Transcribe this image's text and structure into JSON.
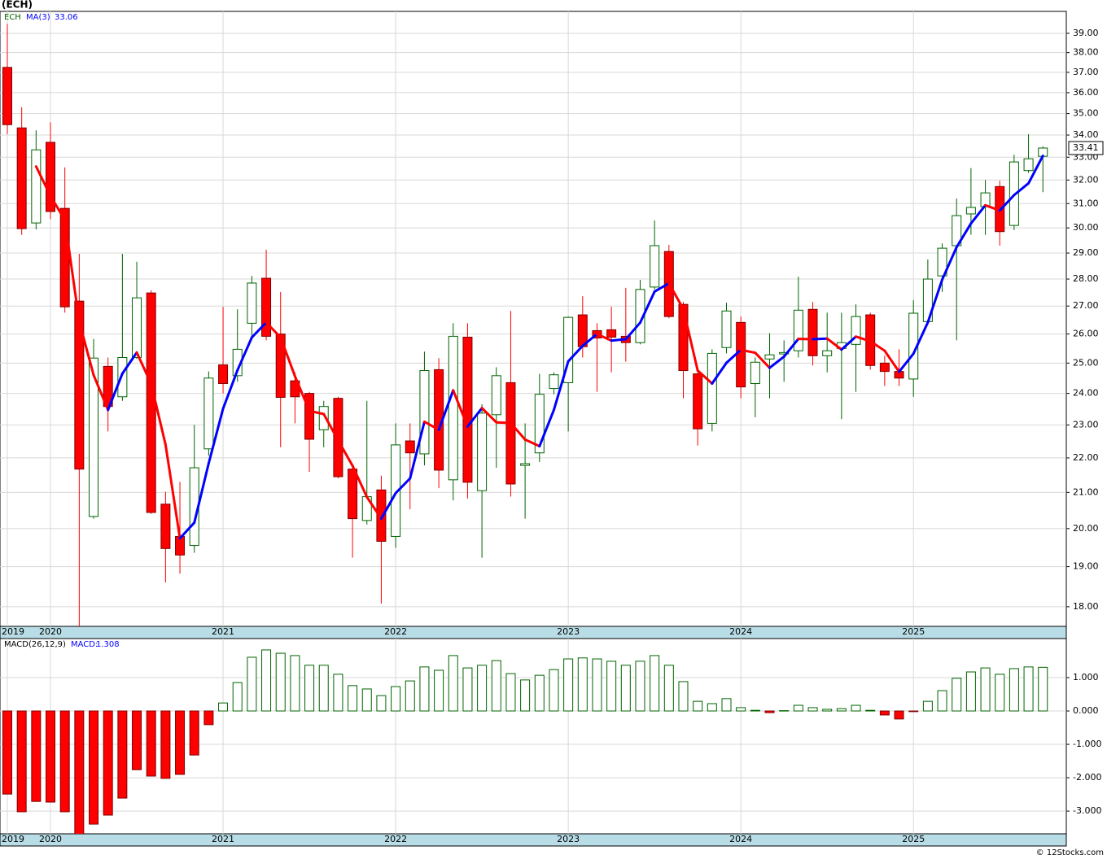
{
  "chart_data": [
    {
      "type": "candlestick",
      "title": "(ECH)",
      "symbol": "ECH",
      "categories": [
        "2019",
        null,
        null,
        "2020",
        null,
        null,
        null,
        null,
        null,
        null,
        null,
        null,
        null,
        null,
        null,
        "2021",
        null,
        null,
        null,
        null,
        null,
        null,
        null,
        null,
        null,
        null,
        null,
        "2022",
        null,
        null,
        null,
        null,
        null,
        null,
        null,
        null,
        null,
        null,
        null,
        "2023",
        null,
        null,
        null,
        null,
        null,
        null,
        null,
        null,
        null,
        null,
        null,
        "2024",
        null,
        null,
        null,
        null,
        null,
        null,
        null,
        null,
        null,
        null,
        null,
        "2025",
        null,
        null,
        null,
        null,
        null,
        null,
        null,
        null,
        null
      ],
      "open": [
        37.25,
        34.33,
        30.2,
        33.67,
        30.8,
        27.18,
        20.33,
        24.89,
        23.89,
        25.19,
        27.48,
        20.67,
        19.79,
        19.55,
        22.27,
        24.94,
        24.58,
        26.38,
        28.03,
        26,
        24.41,
        24,
        22.85,
        23.84,
        21.67,
        20.22,
        21.07,
        19.79,
        22.51,
        22.12,
        24.78,
        21.36,
        25.89,
        21.05,
        23.32,
        24.35,
        21.78,
        22.15,
        24.16,
        24.35,
        26.68,
        26.12,
        26.15,
        25.92,
        25.7,
        27.7,
        29.06,
        27.06,
        24.64,
        23.05,
        25.53,
        26.41,
        24.32,
        25.14,
        25.31,
        25.42,
        26.88,
        25.25,
        25.5,
        25.64,
        26.68,
        25.0,
        24.72,
        24.47,
        26.44,
        28.12,
        29.29,
        30.57,
        30.87,
        31.72,
        30.1,
        32.41,
        33.04
      ],
      "high": [
        39.5,
        35.3,
        34.22,
        34.59,
        32.55,
        28.97,
        25.83,
        25.19,
        28.97,
        28.66,
        27.58,
        21.02,
        21.3,
        23.0,
        24.72,
        26.97,
        26.88,
        28.12,
        29.13,
        27.52,
        24.69,
        24.05,
        23.76,
        23.89,
        21.71,
        23.76,
        21.48,
        23.05,
        23.05,
        25.39,
        25.17,
        26.38,
        26.38,
        23.65,
        24.86,
        26.82,
        23.05,
        24.64,
        24.69,
        26.62,
        27.36,
        26.38,
        26.97,
        27.67,
        27.97,
        30.3,
        29.32,
        27.15,
        24.86,
        25.47,
        27.12,
        26.62,
        25.19,
        26.03,
        25.78,
        28.09,
        27.15,
        26.76,
        26.76,
        27.06,
        26.76,
        25.25,
        25.47,
        27.21,
        28.75,
        29.38,
        31.21,
        32.52,
        32.0,
        31.97,
        33.11,
        34.04,
        33.48
      ],
      "low": [
        34.04,
        29.72,
        29.94,
        30.36,
        26.76,
        17.53,
        20.27,
        22.8,
        23.76,
        25.14,
        20.4,
        18.6,
        18.82,
        19.36,
        22.07,
        24.0,
        24.38,
        25.78,
        25.78,
        22.32,
        23.05,
        21.59,
        22.32,
        21.4,
        19.23,
        20.11,
        18.08,
        19.49,
        20.53,
        21.78,
        21.12,
        20.78,
        20.83,
        19.23,
        21.71,
        20.88,
        20.27,
        21.88,
        23.97,
        22.8,
        25.19,
        24.05,
        24.69,
        25.05,
        25.64,
        27.61,
        26.56,
        23.84,
        22.37,
        22.8,
        25.33,
        23.84,
        23.24,
        23.84,
        24.38,
        25.19,
        24.92,
        24.69,
        23.18,
        24.05,
        24.78,
        24.24,
        24.24,
        23.89,
        26.41,
        27.52,
        25.78,
        29.72,
        29.72,
        29.29,
        29.91,
        32.31,
        31.48
      ],
      "close": [
        34.48,
        29.97,
        33.33,
        30.67,
        26.97,
        21.67,
        25.17,
        23.58,
        25.19,
        27.3,
        20.44,
        19.47,
        19.3,
        21.71,
        24.5,
        24.32,
        25.47,
        27.85,
        25.92,
        23.87,
        23.89,
        22.56,
        23.58,
        21.45,
        20.27,
        20.88,
        19.66,
        22.39,
        22.15,
        24.75,
        21.64,
        25.92,
        21.29,
        23.37,
        24.58,
        21.24,
        21.83,
        23.97,
        24.61,
        26.59,
        25.56,
        25.86,
        25.89,
        25.7,
        27.61,
        29.29,
        26.62,
        24.75,
        22.88,
        25.33,
        26.82,
        24.21,
        25.03,
        25.28,
        25.36,
        26.85,
        25.25,
        25.42,
        25.7,
        26.62,
        24.92,
        24.72,
        24.5,
        26.74,
        28.0,
        29.19,
        30.5,
        30.84,
        31.45,
        29.85,
        32.79,
        32.93,
        33.41
      ],
      "up_color": "#006400",
      "down_color": "#ff0000",
      "ma": {
        "name": "MA(3)",
        "up_color": "#0000ff",
        "down_color": "#ff0000",
        "values": [
          null,
          null,
          32.59,
          31.32,
          30.32,
          26.44,
          24.6,
          23.47,
          24.65,
          25.36,
          24.31,
          22.4,
          19.74,
          20.16,
          21.84,
          23.51,
          24.76,
          25.88,
          26.41,
          25.88,
          24.56,
          23.44,
          23.34,
          22.53,
          21.77,
          20.87,
          20.27,
          20.98,
          21.4,
          23.1,
          22.85,
          24.1,
          22.95,
          23.53,
          23.08,
          23.06,
          22.55,
          22.35,
          23.47,
          25.06,
          25.59,
          26.0,
          25.77,
          25.82,
          26.4,
          27.53,
          27.84,
          26.89,
          24.75,
          24.32,
          25.01,
          25.45,
          25.35,
          24.84,
          25.22,
          25.83,
          25.82,
          25.84,
          25.46,
          25.91,
          25.75,
          25.42,
          24.71,
          25.32,
          26.41,
          27.98,
          29.23,
          30.18,
          30.93,
          30.71,
          31.36,
          31.86,
          33.06
        ]
      },
      "log": true,
      "grid": true,
      "ylim": [
        17.53,
        40.17
      ],
      "yticks": [
        {
          "value": 18,
          "label": "18.00"
        },
        {
          "value": 19,
          "label": "19.00"
        },
        {
          "value": 20,
          "label": "20.00"
        },
        {
          "value": 21,
          "label": "21.00"
        },
        {
          "value": 22,
          "label": "22.00"
        },
        {
          "value": 23,
          "label": "23.00"
        },
        {
          "value": 24,
          "label": "24.00"
        },
        {
          "value": 25,
          "label": "25.00"
        },
        {
          "value": 26,
          "label": "26.00"
        },
        {
          "value": 27,
          "label": "27.00"
        },
        {
          "value": 28,
          "label": "28.00"
        },
        {
          "value": 29,
          "label": "29.00"
        },
        {
          "value": 30,
          "label": "30.00"
        },
        {
          "value": 31,
          "label": "31.00"
        },
        {
          "value": 32,
          "label": "32.00"
        },
        {
          "value": 33,
          "label": "33.00"
        },
        {
          "value": 34,
          "label": "34.00"
        },
        {
          "value": 35,
          "label": "35.00"
        },
        {
          "value": 36,
          "label": "36.00"
        },
        {
          "value": 37,
          "label": "37.00"
        },
        {
          "value": 38,
          "label": "38.00"
        },
        {
          "value": 39,
          "label": "39.00"
        }
      ]
    },
    {
      "type": "bar",
      "title": "MACD(26,12,9)",
      "label": "MACD:",
      "categories": [
        "2019",
        null,
        null,
        "2020",
        null,
        null,
        null,
        null,
        null,
        null,
        null,
        null,
        null,
        null,
        null,
        "2021",
        null,
        null,
        null,
        null,
        null,
        null,
        null,
        null,
        null,
        null,
        null,
        "2022",
        null,
        null,
        null,
        null,
        null,
        null,
        null,
        null,
        null,
        null,
        null,
        "2023",
        null,
        null,
        null,
        null,
        null,
        null,
        null,
        null,
        null,
        null,
        null,
        "2024",
        null,
        null,
        null,
        null,
        null,
        null,
        null,
        null,
        null,
        null,
        null,
        "2025",
        null,
        null,
        null,
        null,
        null,
        null,
        null,
        null,
        null
      ],
      "values": [
        -2.49,
        -3.02,
        -2.71,
        -2.73,
        -3.02,
        -3.7,
        -3.39,
        -3.12,
        -2.61,
        -1.76,
        -1.95,
        -2.02,
        -1.9,
        -1.32,
        -0.41,
        0.24,
        0.85,
        1.61,
        1.83,
        1.73,
        1.66,
        1.37,
        1.37,
        1.1,
        0.76,
        0.66,
        0.46,
        0.73,
        0.9,
        1.32,
        1.22,
        1.66,
        1.29,
        1.37,
        1.51,
        1.12,
        0.93,
        1.07,
        1.24,
        1.56,
        1.59,
        1.56,
        1.49,
        1.37,
        1.49,
        1.66,
        1.37,
        0.88,
        0.29,
        0.22,
        0.37,
        0.1,
        0.02,
        -0.05,
        0.01,
        0.17,
        0.1,
        0.05,
        0.07,
        0.17,
        0.02,
        -0.12,
        -0.24,
        -0.02,
        0.29,
        0.61,
        0.98,
        1.17,
        1.29,
        1.1,
        1.27,
        1.32,
        1.308
      ],
      "pos_color": "#006400",
      "neg_color": "#ff0000",
      "grid": true,
      "ylim": [
        -3.68,
        2.17
      ],
      "yticks": [
        {
          "value": -3,
          "label": "-3.000"
        },
        {
          "value": -2,
          "label": "-2.000"
        },
        {
          "value": -1,
          "label": "-1.000"
        },
        {
          "value": 0,
          "label": "0.000"
        },
        {
          "value": 1,
          "label": "1.000"
        }
      ]
    }
  ],
  "footer": "© 12Stocks.com"
}
